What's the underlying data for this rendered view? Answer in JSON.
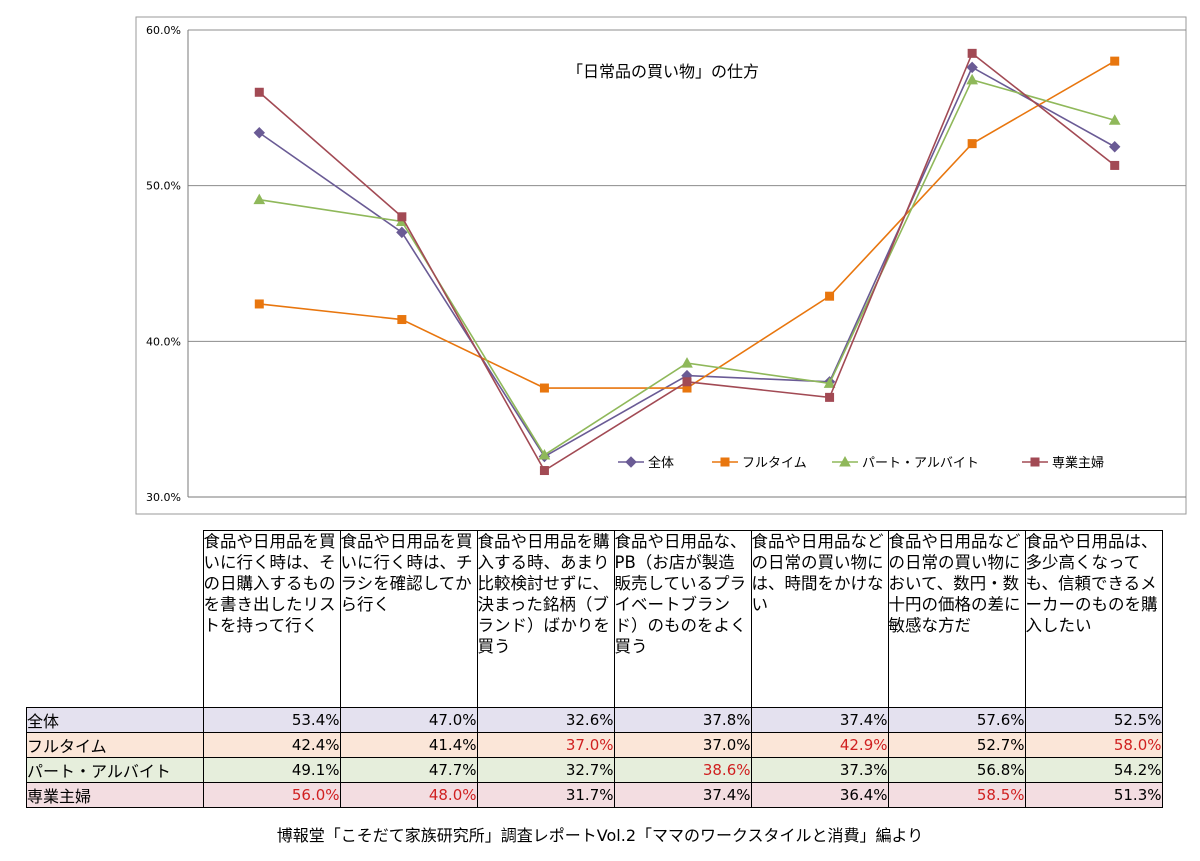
{
  "chart_data": {
    "type": "line",
    "title": "「日常品の買い物」の仕方",
    "ylim": [
      30,
      60
    ],
    "y_ticks": [
      "30.0%",
      "40.0%",
      "50.0%",
      "60.0%"
    ],
    "grid": true,
    "legend_position": "bottom-right, inside plot",
    "categories": [
      "食品や日用品を買いに行く時は、その日購入するものを書き出したリストを持って行く",
      "食品や日用品を買いに行く時は、チラシを確認してから行く",
      "食品や日用品を購入する時、あまり比較検討せずに、決まった銘柄（ブランド）ばかりを買う",
      "食品や日用品な、PB（お店が製造販売しているプライベートブランド）のものをよく買う",
      "食品や日用品などの日常の買い物には、時間をかけない",
      "食品や日用品などの日常の買い物において、数円・数十円の価格の差に敏感な方だ",
      "食品や日用品は、多少高くなっても、信頼できるメーカーのものを購入したい"
    ],
    "series": [
      {
        "name": "全体",
        "color": "#6a5b95",
        "marker": "diamond",
        "values": [
          53.4,
          47.0,
          32.6,
          37.8,
          37.4,
          57.6,
          52.5
        ],
        "labels": [
          "53.4%",
          "47.0%",
          "32.6%",
          "37.8%",
          "37.4%",
          "57.6%",
          "52.5%"
        ],
        "highlight": [
          false,
          false,
          false,
          false,
          false,
          false,
          false
        ]
      },
      {
        "name": "フルタイム",
        "color": "#e8760e",
        "marker": "square",
        "values": [
          42.4,
          41.4,
          37.0,
          37.0,
          42.9,
          52.7,
          58.0
        ],
        "labels": [
          "42.4%",
          "41.4%",
          "37.0%",
          "37.0%",
          "42.9%",
          "52.7%",
          "58.0%"
        ],
        "highlight": [
          false,
          false,
          true,
          false,
          true,
          false,
          true
        ]
      },
      {
        "name": "パート・アルバイト",
        "color": "#8fb85a",
        "marker": "triangle",
        "values": [
          49.1,
          47.7,
          32.7,
          38.6,
          37.3,
          56.8,
          54.2
        ],
        "labels": [
          "49.1%",
          "47.7%",
          "32.7%",
          "38.6%",
          "37.3%",
          "56.8%",
          "54.2%"
        ],
        "highlight": [
          false,
          false,
          false,
          true,
          false,
          false,
          false
        ]
      },
      {
        "name": "専業主婦",
        "color": "#a24a54",
        "marker": "square",
        "values": [
          56.0,
          48.0,
          31.7,
          37.4,
          36.4,
          58.5,
          51.3
        ],
        "labels": [
          "56.0%",
          "48.0%",
          "31.7%",
          "37.4%",
          "36.4%",
          "58.5%",
          "51.3%"
        ],
        "highlight": [
          true,
          true,
          false,
          false,
          false,
          true,
          false
        ]
      }
    ]
  },
  "source_note": "博報堂「こそだて家族研究所」調査レポートVol.2「ママのワークスタイルと消費」編より"
}
